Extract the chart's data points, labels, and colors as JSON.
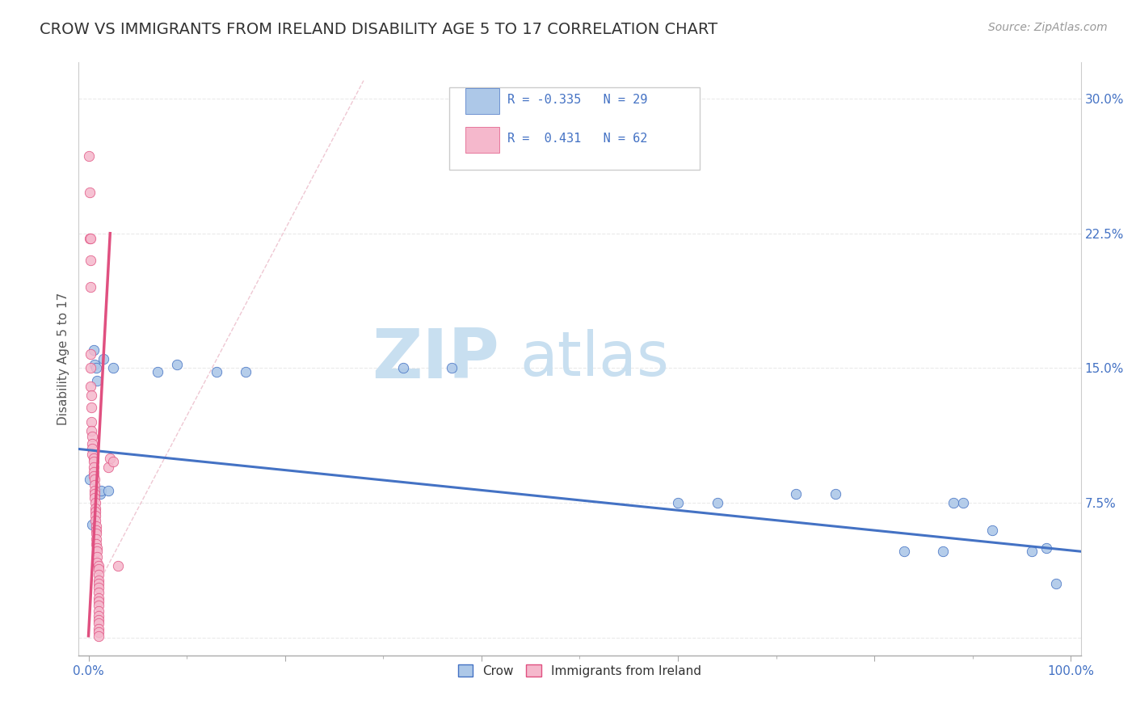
{
  "title": "CROW VS IMMIGRANTS FROM IRELAND DISABILITY AGE 5 TO 17 CORRELATION CHART",
  "source": "Source: ZipAtlas.com",
  "ylabel": "Disability Age 5 to 17",
  "legend_label_1": "Crow",
  "legend_label_2": "Immigrants from Ireland",
  "color_blue": "#adc8e8",
  "color_pink": "#f5b8cc",
  "line_blue": "#4472c4",
  "line_pink": "#e05080",
  "watermark_zip_color": "#c8dff0",
  "watermark_atlas_color": "#c8dff0",
  "blue_scatter": [
    [
      0.001,
      0.088
    ],
    [
      0.004,
      0.063
    ],
    [
      0.005,
      0.16
    ],
    [
      0.006,
      0.152
    ],
    [
      0.008,
      0.15
    ],
    [
      0.009,
      0.143
    ],
    [
      0.012,
      0.08
    ],
    [
      0.013,
      0.082
    ],
    [
      0.015,
      0.155
    ],
    [
      0.02,
      0.082
    ],
    [
      0.025,
      0.15
    ],
    [
      0.07,
      0.148
    ],
    [
      0.09,
      0.152
    ],
    [
      0.13,
      0.148
    ],
    [
      0.16,
      0.148
    ],
    [
      0.32,
      0.15
    ],
    [
      0.37,
      0.15
    ],
    [
      0.6,
      0.075
    ],
    [
      0.64,
      0.075
    ],
    [
      0.72,
      0.08
    ],
    [
      0.76,
      0.08
    ],
    [
      0.83,
      0.048
    ],
    [
      0.87,
      0.048
    ],
    [
      0.88,
      0.075
    ],
    [
      0.89,
      0.075
    ],
    [
      0.92,
      0.06
    ],
    [
      0.96,
      0.048
    ],
    [
      0.975,
      0.05
    ],
    [
      0.985,
      0.03
    ]
  ],
  "pink_scatter": [
    [
      0.0,
      0.268
    ],
    [
      0.001,
      0.248
    ],
    [
      0.001,
      0.222
    ],
    [
      0.002,
      0.222
    ],
    [
      0.002,
      0.21
    ],
    [
      0.002,
      0.195
    ],
    [
      0.002,
      0.158
    ],
    [
      0.002,
      0.15
    ],
    [
      0.002,
      0.14
    ],
    [
      0.003,
      0.135
    ],
    [
      0.003,
      0.128
    ],
    [
      0.003,
      0.12
    ],
    [
      0.003,
      0.115
    ],
    [
      0.004,
      0.112
    ],
    [
      0.004,
      0.108
    ],
    [
      0.004,
      0.105
    ],
    [
      0.004,
      0.102
    ],
    [
      0.005,
      0.1
    ],
    [
      0.005,
      0.098
    ],
    [
      0.005,
      0.095
    ],
    [
      0.005,
      0.092
    ],
    [
      0.005,
      0.09
    ],
    [
      0.006,
      0.088
    ],
    [
      0.006,
      0.085
    ],
    [
      0.006,
      0.082
    ],
    [
      0.006,
      0.08
    ],
    [
      0.006,
      0.078
    ],
    [
      0.007,
      0.075
    ],
    [
      0.007,
      0.072
    ],
    [
      0.007,
      0.07
    ],
    [
      0.007,
      0.068
    ],
    [
      0.007,
      0.065
    ],
    [
      0.008,
      0.062
    ],
    [
      0.008,
      0.06
    ],
    [
      0.008,
      0.058
    ],
    [
      0.008,
      0.055
    ],
    [
      0.008,
      0.052
    ],
    [
      0.009,
      0.05
    ],
    [
      0.009,
      0.048
    ],
    [
      0.009,
      0.045
    ],
    [
      0.009,
      0.042
    ],
    [
      0.01,
      0.04
    ],
    [
      0.01,
      0.038
    ],
    [
      0.01,
      0.035
    ],
    [
      0.01,
      0.032
    ],
    [
      0.01,
      0.03
    ],
    [
      0.01,
      0.028
    ],
    [
      0.01,
      0.025
    ],
    [
      0.01,
      0.022
    ],
    [
      0.01,
      0.02
    ],
    [
      0.01,
      0.018
    ],
    [
      0.01,
      0.015
    ],
    [
      0.01,
      0.012
    ],
    [
      0.01,
      0.01
    ],
    [
      0.01,
      0.008
    ],
    [
      0.01,
      0.005
    ],
    [
      0.01,
      0.003
    ],
    [
      0.01,
      0.001
    ],
    [
      0.02,
      0.095
    ],
    [
      0.022,
      0.1
    ],
    [
      0.025,
      0.098
    ],
    [
      0.03,
      0.04
    ]
  ],
  "xmin": -0.01,
  "xmax": 1.01,
  "ymin": -0.01,
  "ymax": 0.32,
  "xticks": [
    0.0,
    0.2,
    0.4,
    0.6,
    0.8,
    1.0
  ],
  "xtick_labels_shown": [
    "0.0%",
    "",
    "",
    "",
    "",
    "100.0%"
  ],
  "xtick_minor": [
    0.1,
    0.3,
    0.5,
    0.7,
    0.9
  ],
  "yticks": [
    0.0,
    0.075,
    0.15,
    0.225,
    0.3
  ],
  "ytick_labels": [
    "",
    "7.5%",
    "15.0%",
    "22.5%",
    "30.0%"
  ],
  "grid_color": "#e8e8e8",
  "grid_style": "--",
  "background_color": "#ffffff",
  "title_fontsize": 14,
  "axis_label_fontsize": 11,
  "tick_fontsize": 11,
  "source_fontsize": 10
}
